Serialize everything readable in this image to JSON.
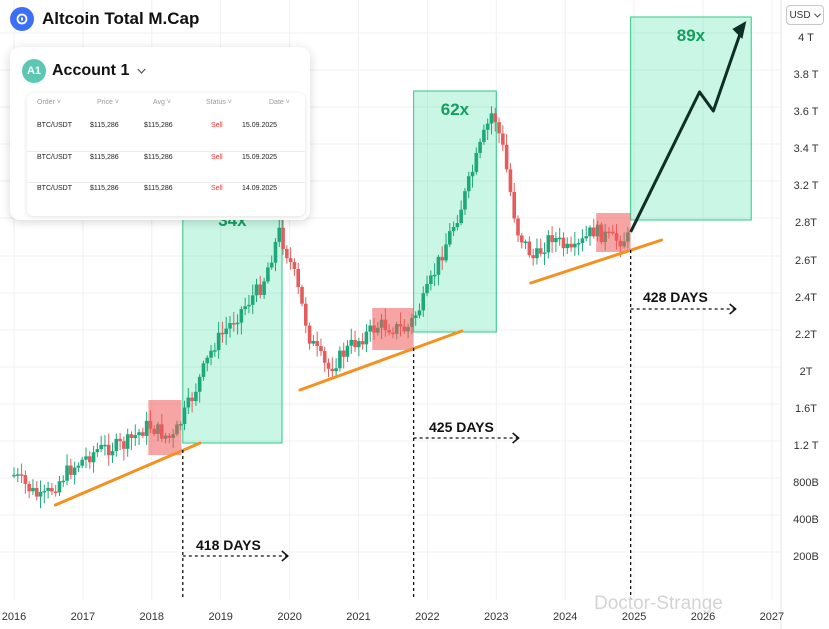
{
  "header": {
    "title": "Altcoin Total M.Cap",
    "currency": "USD",
    "currency_chevron": "chevron-down-icon",
    "logo_icon": "altcoin-logo-icon"
  },
  "account_card": {
    "avatar": "A1",
    "name": "Account 1",
    "dropdown_icon": "chevron-down-icon",
    "columns": [
      "Order",
      "Price",
      "Avg",
      "Status",
      "Date"
    ],
    "rows": [
      {
        "order": "BTC/USDT",
        "price": "$115,286",
        "avg": "$115,286",
        "status": "Sell",
        "date": "15.09.2025"
      },
      {
        "order": "BTC/USDT",
        "price": "$115,286",
        "avg": "$115,286",
        "status": "Sell",
        "date": "15.09.2025"
      },
      {
        "order": "BTC/USDT",
        "price": "$115,286",
        "avg": "$115,286",
        "status": "Sell",
        "date": "14.09.2025"
      }
    ]
  },
  "colors": {
    "bull": "#1fa87a",
    "bear": "#e35d5d",
    "green_zone": "#3ee0a0",
    "red_zone": "#f05a5a",
    "trendline": "#f59120",
    "label_green": "#159e5e"
  },
  "chart_data": {
    "type": "candlestick",
    "x_ticks": [
      "2016",
      "2017",
      "2018",
      "2019",
      "2020",
      "2021",
      "2022",
      "2023",
      "2024",
      "2025",
      "2026",
      "2027"
    ],
    "y_ticks": [
      "4 T",
      "3.8 T",
      "3.6 T",
      "3.4 T",
      "3.2 T",
      "2.8T",
      "2.6T",
      "2.4T",
      "2.2T",
      "2T",
      "1.6T",
      "1.2 T",
      "800B",
      "400B",
      "200B"
    ],
    "zones": [
      {
        "label": "34x",
        "x_start": 2018.45,
        "x_end": 2019.89,
        "y_low": "1.2 T",
        "y_high": "2.8T"
      },
      {
        "label": "62x",
        "x_start": 2021.8,
        "x_end": 2023.0,
        "y_low": "2.2T",
        "y_high": "3.6 T"
      },
      {
        "label": "89x",
        "x_start": 2024.95,
        "x_end": 2026.7,
        "y_low": "2.8T",
        "y_high": "4 T"
      }
    ],
    "accumulation_boxes": [
      {
        "x_start": 2017.95,
        "x_end": 2018.43
      },
      {
        "x_start": 2021.2,
        "x_end": 2021.8
      },
      {
        "x_start": 2024.45,
        "x_end": 2024.95
      }
    ],
    "day_markers": [
      {
        "label": "418 DAYS",
        "x": 2018.45
      },
      {
        "label": "425 DAYS",
        "x": 2021.8
      },
      {
        "label": "428 DAYS",
        "x": 2024.95
      }
    ],
    "trendlines": [
      {
        "x_start": 2016.6,
        "x_end": 2018.7
      },
      {
        "x_start": 2020.15,
        "x_end": 2022.5
      },
      {
        "x_start": 2023.5,
        "x_end": 2025.4
      }
    ],
    "projection": {
      "x_start": 2024.95,
      "x_end": 2026.6,
      "y_end": "4 T"
    },
    "watermark": "Doctor-Strange"
  }
}
